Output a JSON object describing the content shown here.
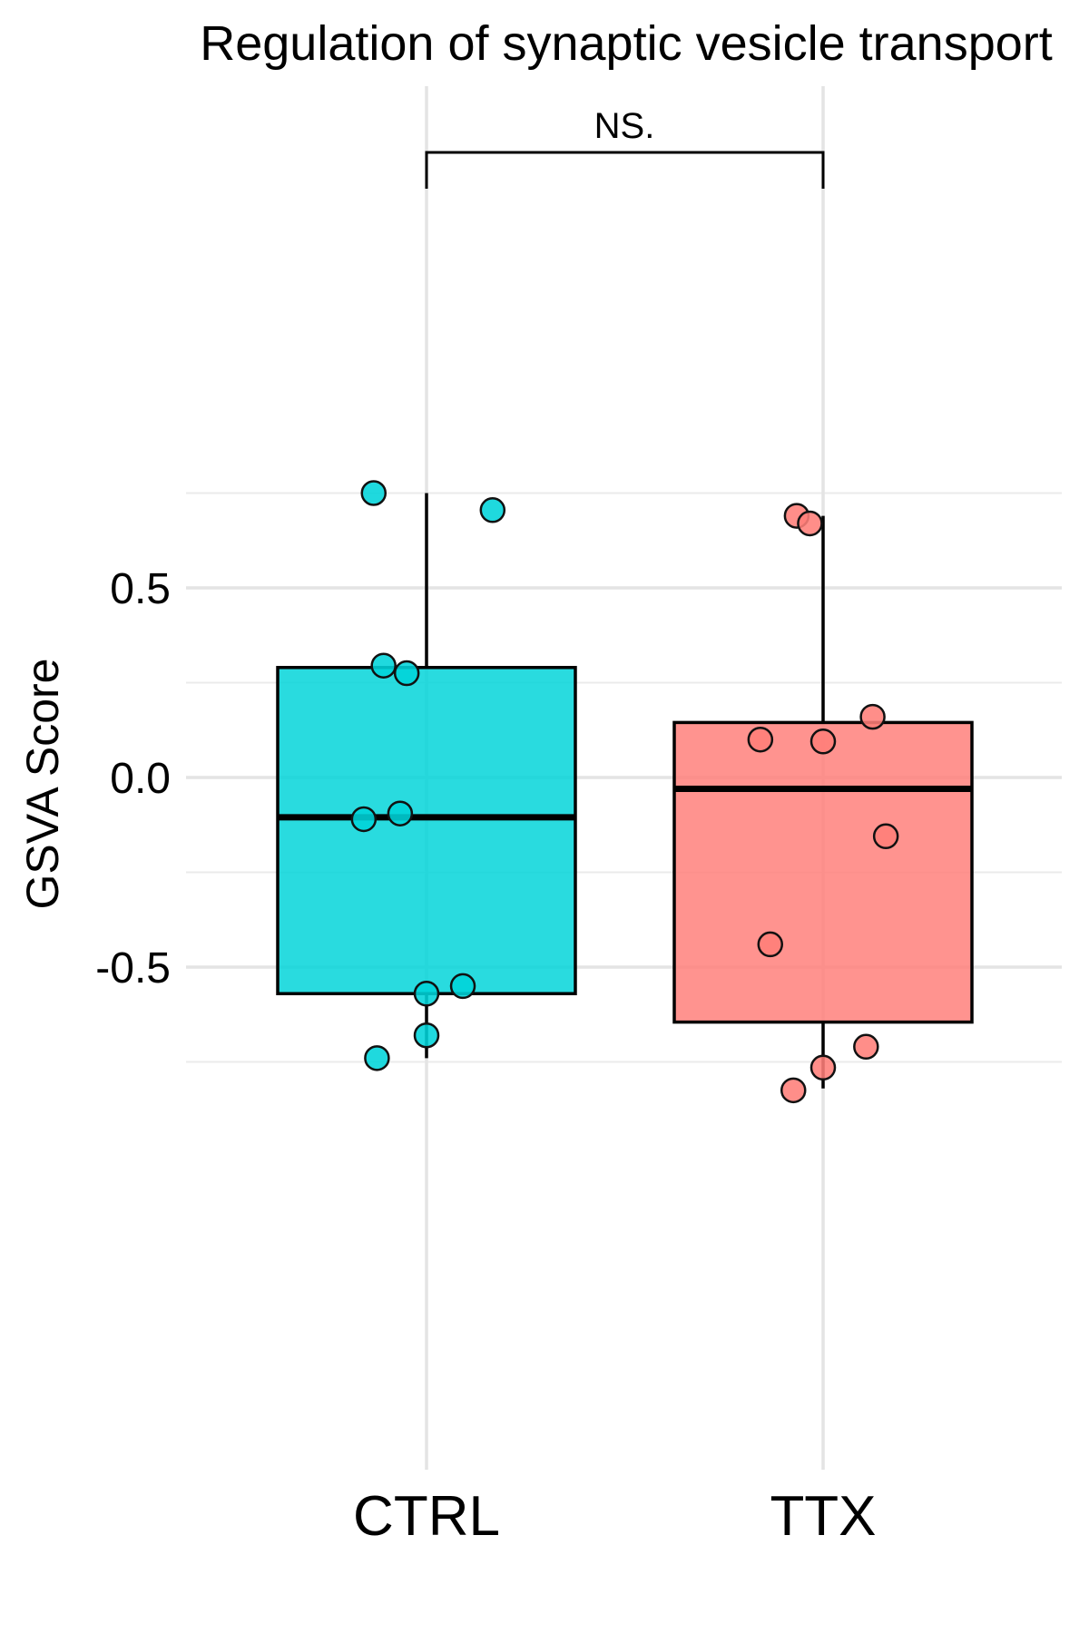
{
  "chart_data": {
    "type": "box",
    "title": "Regulation of synaptic vesicle transport",
    "xlabel": "",
    "ylabel": "GSVA Score",
    "categories": [
      "CTRL",
      "TTX"
    ],
    "ylim": [
      -0.9,
      0.9
    ],
    "yticks": [
      "-0.5",
      "0.0",
      "0.5"
    ],
    "grid": true,
    "significance": {
      "label": "NS.",
      "between": [
        "CTRL",
        "TTX"
      ]
    },
    "series": [
      {
        "name": "CTRL",
        "color": "#00D4D9",
        "box": {
          "lower_whisker": -0.74,
          "q1": -0.57,
          "median": -0.105,
          "q3": 0.29,
          "upper_whisker": 0.75
        },
        "points": [
          {
            "jitter": -0.16,
            "value": 0.75
          },
          {
            "jitter": 0.2,
            "value": 0.705
          },
          {
            "jitter": -0.13,
            "value": 0.295
          },
          {
            "jitter": -0.06,
            "value": 0.275
          },
          {
            "jitter": -0.08,
            "value": -0.095
          },
          {
            "jitter": -0.19,
            "value": -0.11
          },
          {
            "jitter": 0.11,
            "value": -0.55
          },
          {
            "jitter": 0.0,
            "value": -0.57
          },
          {
            "jitter": 0.0,
            "value": -0.68
          },
          {
            "jitter": -0.15,
            "value": -0.74
          }
        ]
      },
      {
        "name": "TTX",
        "color": "#FF7E79",
        "box": {
          "lower_whisker": -0.82,
          "q1": -0.645,
          "median": -0.03,
          "q3": 0.145,
          "upper_whisker": 0.69
        },
        "points": [
          {
            "jitter": -0.08,
            "value": 0.69
          },
          {
            "jitter": -0.04,
            "value": 0.67
          },
          {
            "jitter": 0.15,
            "value": 0.16
          },
          {
            "jitter": -0.19,
            "value": 0.1
          },
          {
            "jitter": 0.0,
            "value": 0.095
          },
          {
            "jitter": 0.19,
            "value": -0.155
          },
          {
            "jitter": -0.16,
            "value": -0.44
          },
          {
            "jitter": 0.13,
            "value": -0.71
          },
          {
            "jitter": 0.0,
            "value": -0.765
          },
          {
            "jitter": -0.09,
            "value": -0.825
          }
        ]
      }
    ]
  }
}
